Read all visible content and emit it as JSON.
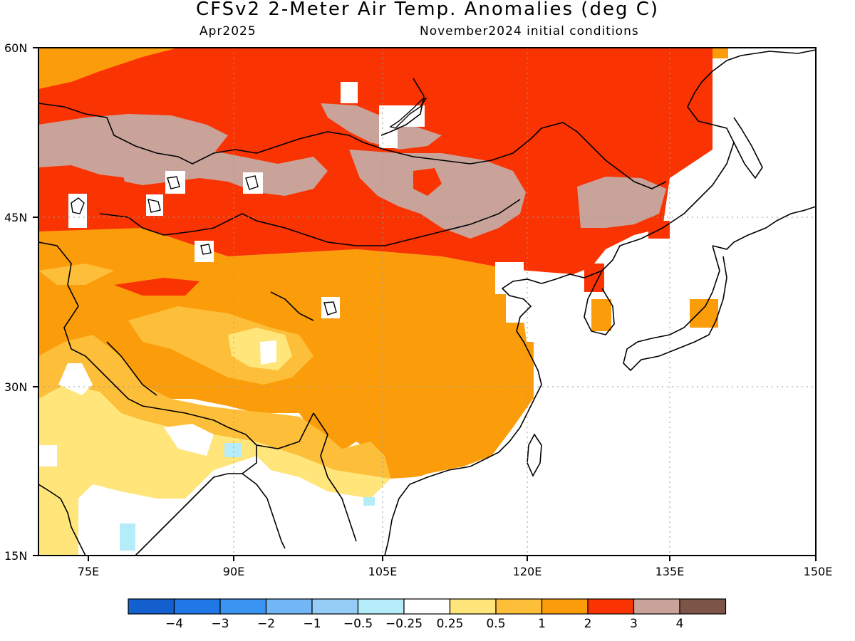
{
  "title": "CFSv2 2-Meter Air Temp. Anomalies (deg C)",
  "subtitle_left": "Apr2025",
  "subtitle_right": "November2024 initial conditions",
  "lat_labels": [
    "60N",
    "45N",
    "30N",
    "15N"
  ],
  "lon_labels": [
    "75E",
    "90E",
    "105E",
    "120E",
    "135E",
    "150E"
  ],
  "legend": {
    "labels": [
      "-4",
      "-3",
      "-2",
      "-1",
      "-0.5",
      "-0.25",
      "0.25",
      "0.5",
      "1",
      "2",
      "3",
      "4"
    ],
    "colors": [
      "#1560cf",
      "#1f78e6",
      "#3a94f2",
      "#72b6f5",
      "#96cdf7",
      "#b4ecfa",
      "#ffffff",
      "#ffe57a",
      "#fdbe3a",
      "#fb9d0a",
      "#fa3302",
      "#c9a39a",
      "#7c5548"
    ]
  }
}
